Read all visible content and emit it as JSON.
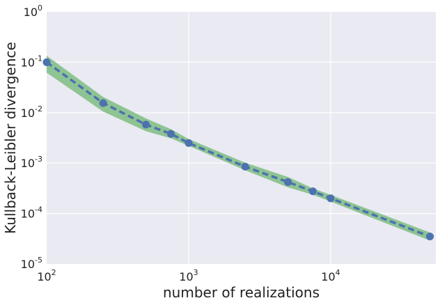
{
  "chart_data": {
    "type": "line",
    "xlabel": "number of realizations",
    "ylabel": "Kullback-Leibler divergence",
    "xscale": "log",
    "yscale": "log",
    "xlim": [
      100,
      55000
    ],
    "ylim": [
      1e-05,
      1
    ],
    "grid": true,
    "x_ticks": [
      {
        "base": "10",
        "exp": "2",
        "value": 100
      },
      {
        "base": "10",
        "exp": "3",
        "value": 1000
      },
      {
        "base": "10",
        "exp": "4",
        "value": 10000
      }
    ],
    "y_ticks": [
      {
        "base": "10",
        "exp": "0",
        "value": 1
      },
      {
        "base": "10",
        "exp": "-1",
        "value": 0.1
      },
      {
        "base": "10",
        "exp": "-2",
        "value": 0.01
      },
      {
        "base": "10",
        "exp": "-3",
        "value": 0.001
      },
      {
        "base": "10",
        "exp": "-4",
        "value": 0.0001
      },
      {
        "base": "10",
        "exp": "-5",
        "value": 1e-05
      }
    ],
    "series": [
      {
        "x": [
          100,
          250,
          500,
          750,
          1000,
          2500,
          5000,
          7500,
          10000,
          50000
        ],
        "y": [
          0.1,
          0.0155,
          0.0058,
          0.0038,
          0.0025,
          0.00085,
          0.00042,
          0.000275,
          0.0002,
          3.5e-05
        ],
        "lower": [
          0.062,
          0.0105,
          0.0043,
          0.0031,
          0.0022,
          0.00072,
          0.00033,
          0.000235,
          0.000172,
          2.9e-05
        ],
        "upper": [
          0.135,
          0.0205,
          0.0077,
          0.0047,
          0.003,
          0.00102,
          0.00053,
          0.000315,
          0.000234,
          4.2e-05
        ]
      }
    ],
    "colors": {
      "background": "#eaeaf2",
      "grid": "#ffffff",
      "line": "#4c72b0",
      "band": "#8ec493"
    }
  }
}
